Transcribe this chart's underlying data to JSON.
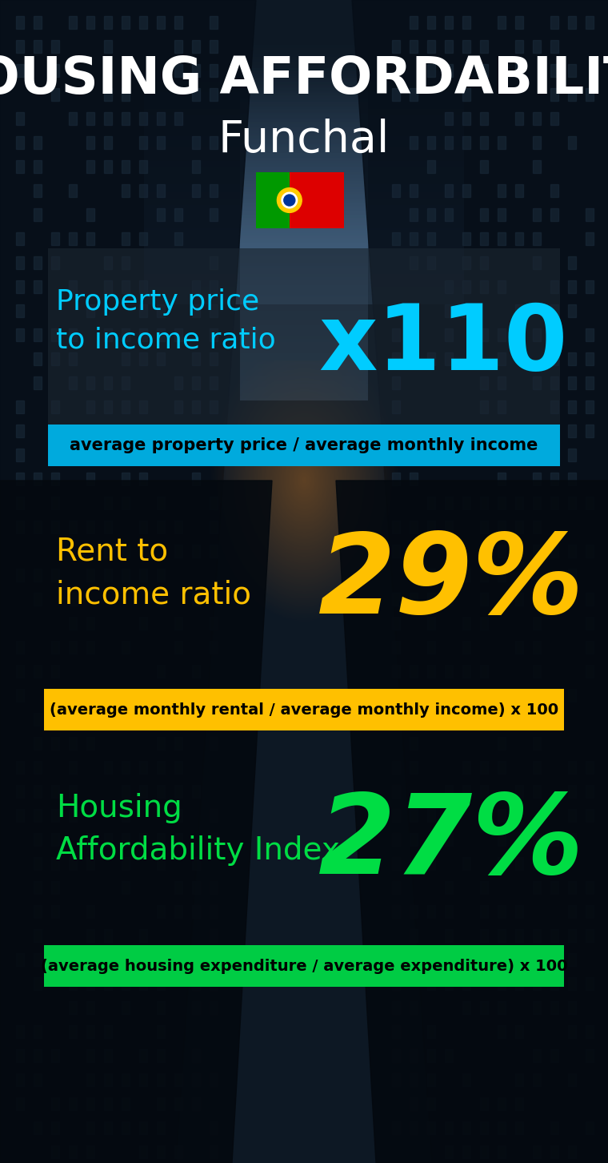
{
  "title_line1": "HOUSING AFFORDABILITY",
  "title_line2": "Funchal",
  "section1_label": "Property price\nto income ratio",
  "section1_value": "x110",
  "section1_label_color": "#00ccff",
  "section1_value_color": "#00ccff",
  "section1_banner_text": "average property price / average monthly income",
  "section1_banner_bg": "#00aadd",
  "section2_label": "Rent to\nincome ratio",
  "section2_value": "29%",
  "section2_label_color": "#ffc000",
  "section2_value_color": "#ffc000",
  "section2_banner_text": "(average monthly rental / average monthly income) x 100",
  "section2_banner_bg": "#ffc000",
  "section3_label": "Housing\nAffordability Index",
  "section3_value": "27%",
  "section3_label_color": "#00dd44",
  "section3_value_color": "#00dd44",
  "section3_banner_text": "(average housing expenditure / average expenditure) x 100",
  "section3_banner_bg": "#00cc44",
  "bg_color": "#0a1420",
  "title_color": "#ffffff",
  "banner_text_color": "#000000",
  "flag_green": "#009900",
  "flag_red": "#dd0000",
  "flag_yellow": "#ffcc00"
}
